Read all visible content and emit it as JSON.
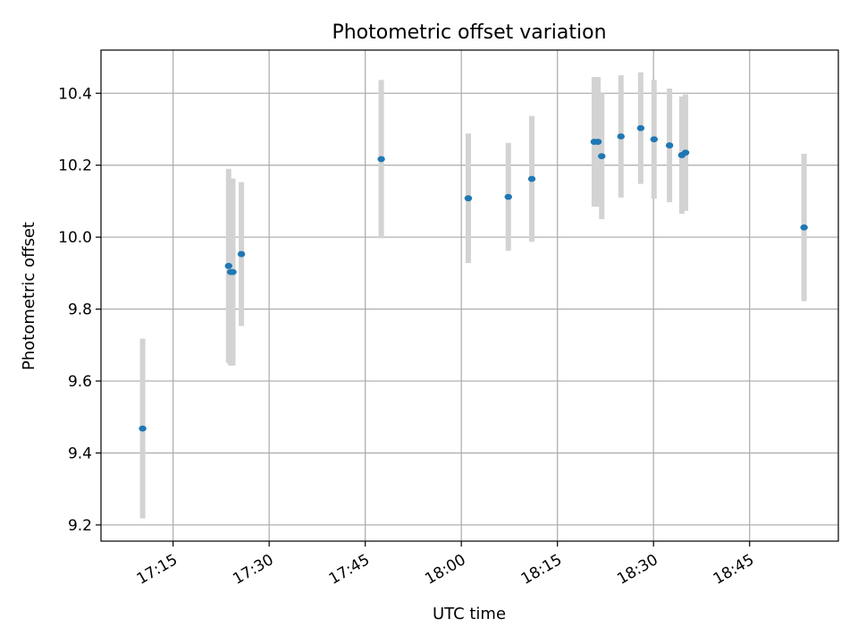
{
  "chart_data": {
    "type": "scatter",
    "title": "Photometric offset variation",
    "xlabel": "UTC time",
    "ylabel": "Photometric offset",
    "x_tick_labels": [
      "17:15",
      "17:30",
      "17:45",
      "18:00",
      "18:15",
      "18:30",
      "18:45"
    ],
    "y_tick_labels": [
      "9.2",
      "9.4",
      "9.6",
      "9.8",
      "10.0",
      "10.2",
      "10.4"
    ],
    "xlim": [
      "17:03:45",
      "18:58:51"
    ],
    "ylim": [
      9.155,
      10.52
    ],
    "grid": true,
    "marker_color": "#1f77b4",
    "errorbar_color": "#d3d3d3",
    "points": [
      {
        "x": "17:10:15",
        "y": 9.468,
        "err": 0.25
      },
      {
        "x": "17:23:40",
        "y": 9.92,
        "err": 0.27
      },
      {
        "x": "17:24:00",
        "y": 9.903,
        "err": 0.26
      },
      {
        "x": "17:24:20",
        "y": 9.903,
        "err": 0.26
      },
      {
        "x": "17:25:40",
        "y": 9.953,
        "err": 0.2
      },
      {
        "x": "17:47:30",
        "y": 10.217,
        "err": 0.22
      },
      {
        "x": "18:01:05",
        "y": 10.108,
        "err": 0.18
      },
      {
        "x": "18:07:20",
        "y": 10.112,
        "err": 0.15
      },
      {
        "x": "18:11:00",
        "y": 10.162,
        "err": 0.175
      },
      {
        "x": "18:20:45",
        "y": 10.265,
        "err": 0.18
      },
      {
        "x": "18:21:20",
        "y": 10.265,
        "err": 0.18
      },
      {
        "x": "18:21:55",
        "y": 10.225,
        "err": 0.175
      },
      {
        "x": "18:24:55",
        "y": 10.28,
        "err": 0.17
      },
      {
        "x": "18:28:00",
        "y": 10.303,
        "err": 0.155
      },
      {
        "x": "18:30:05",
        "y": 10.272,
        "err": 0.165
      },
      {
        "x": "18:32:30",
        "y": 10.255,
        "err": 0.158
      },
      {
        "x": "18:34:25",
        "y": 10.228,
        "err": 0.163
      },
      {
        "x": "18:35:00",
        "y": 10.235,
        "err": 0.162
      },
      {
        "x": "18:53:30",
        "y": 10.027,
        "err": 0.205
      }
    ]
  }
}
